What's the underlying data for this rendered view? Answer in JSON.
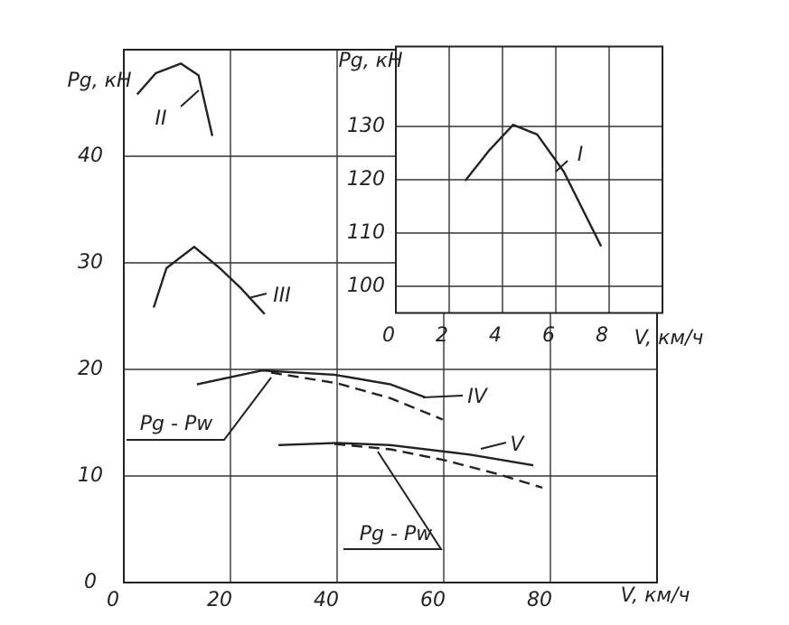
{
  "chart_data": [
    {
      "type": "line",
      "x_label": "V, км/ч",
      "y_label": "Pg, кН",
      "xlim": [
        0,
        100
      ],
      "ylim": [
        0,
        50
      ],
      "xticks": [
        0,
        20,
        40,
        60,
        80
      ],
      "yticks": [
        0,
        10,
        20,
        30,
        40
      ],
      "grid": true,
      "series": [
        {
          "name": "II",
          "color": "#222",
          "dashed": false,
          "x": [
            2.5,
            6,
            10.7,
            14,
            16.6
          ],
          "values": [
            45.8,
            47.8,
            48.7,
            47.6,
            41.9
          ]
        },
        {
          "name": "III",
          "color": "#222",
          "dashed": false,
          "x": [
            5.6,
            8,
            13.2,
            18,
            22,
            26.4
          ],
          "values": [
            25.8,
            29.5,
            31.5,
            29.5,
            27.6,
            25.2
          ]
        },
        {
          "name": "IV",
          "color": "#222",
          "dashed": false,
          "x": [
            13.7,
            25.9,
            39.5,
            50,
            56.4
          ],
          "values": [
            18.6,
            19.9,
            19.5,
            18.6,
            17.4
          ]
        },
        {
          "name": "Pg - Pw",
          "color": "#222",
          "dashed": true,
          "x": [
            27.6,
            40,
            50,
            59.8
          ],
          "values": [
            19.7,
            18.7,
            17.3,
            15.3
          ]
        },
        {
          "name": "V",
          "color": "#222",
          "dashed": false,
          "x": [
            29,
            40,
            50,
            65,
            76.8
          ],
          "values": [
            12.9,
            13.1,
            12.9,
            12,
            11
          ]
        },
        {
          "name": "Pg - Pw",
          "color": "#222",
          "dashed": true,
          "x": [
            39.5,
            50,
            60,
            70,
            78.5
          ],
          "values": [
            13,
            12.5,
            11.5,
            10.2,
            8.9
          ]
        }
      ]
    },
    {
      "type": "line",
      "x_label": "V, км/ч",
      "y_label": "Pg, кН",
      "xlim": [
        0,
        10
      ],
      "ylim": [
        95,
        145
      ],
      "xticks": [
        0,
        2,
        4,
        6,
        8
      ],
      "yticks": [
        100,
        110,
        120,
        130
      ],
      "grid": true,
      "series": [
        {
          "name": "I",
          "color": "#222",
          "dashed": false,
          "x": [
            2.6,
            3.5,
            4.4,
            5.3,
            6.3,
            7.7
          ],
          "values": [
            119.8,
            125.5,
            130.3,
            128.5,
            121.5,
            107.5
          ]
        }
      ]
    }
  ]
}
